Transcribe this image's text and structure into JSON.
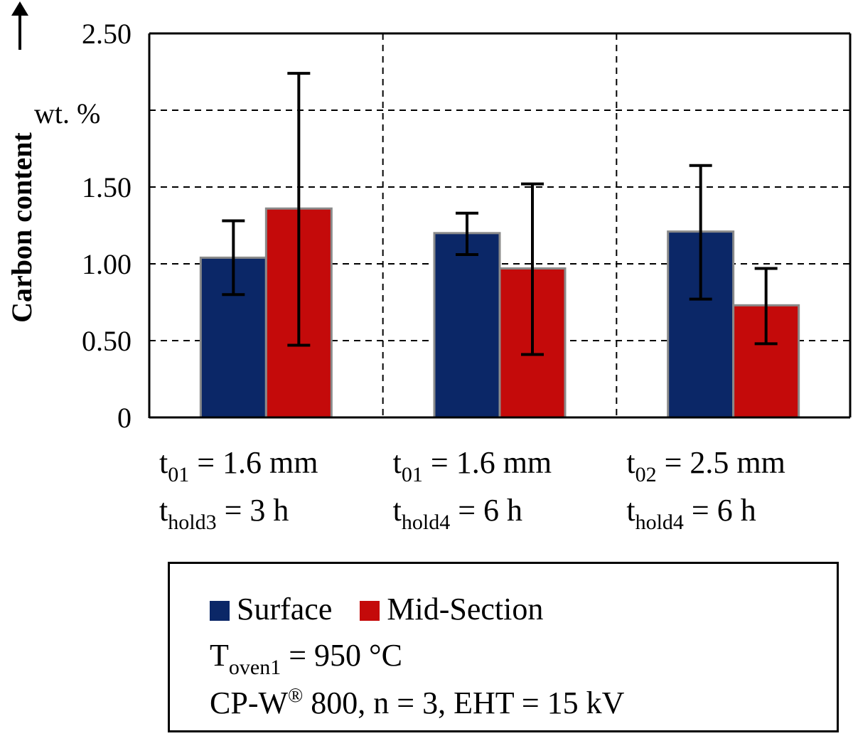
{
  "chart_data": {
    "type": "bar",
    "title": "",
    "ylabel": "Carbon content",
    "yunit": "wt. %",
    "ylim": [
      0,
      2.5
    ],
    "yticks": [
      0,
      0.5,
      1.0,
      1.5,
      2.0,
      2.5
    ],
    "ytick_labels": [
      "0",
      "0.50",
      "1.00",
      "1.50",
      "",
      "2.50"
    ],
    "grid": "dashed",
    "categories": [
      {
        "line1_main": "t",
        "line1_sub": "01",
        "line1_rest": " = 1.6 mm",
        "line2_main": "t",
        "line2_sub": "hold3",
        "line2_rest": " = 3 h"
      },
      {
        "line1_main": "t",
        "line1_sub": "01",
        "line1_rest": " = 1.6 mm",
        "line2_main": "t",
        "line2_sub": "hold4",
        "line2_rest": " = 6 h"
      },
      {
        "line1_main": "t",
        "line1_sub": "02",
        "line1_rest": " = 2.5 mm",
        "line2_main": "t",
        "line2_sub": "hold4",
        "line2_rest": " = 6 h"
      }
    ],
    "series": [
      {
        "name": "Surface",
        "color": "#0b2767",
        "values": [
          1.04,
          1.2,
          1.21
        ],
        "err_low": [
          0.8,
          1.06,
          0.77
        ],
        "err_high": [
          1.28,
          1.33,
          1.64
        ]
      },
      {
        "name": "Mid-Section",
        "color": "#c40a0a",
        "values": [
          1.36,
          0.97,
          0.73
        ],
        "err_low": [
          0.47,
          0.41,
          0.48
        ],
        "err_high": [
          2.24,
          1.52,
          0.97
        ]
      }
    ]
  },
  "legend": {
    "series": [
      {
        "label": "Surface",
        "color": "#0b2767"
      },
      {
        "label": "Mid-Section",
        "color": "#c40a0a"
      }
    ],
    "temp_main": "T",
    "temp_sub": "oven1",
    "temp_rest": " = 950 °C",
    "material_pre": "CP-W",
    "material_sup": "®",
    "material_rest": " 800, n = 3, EHT = 15 kV"
  }
}
